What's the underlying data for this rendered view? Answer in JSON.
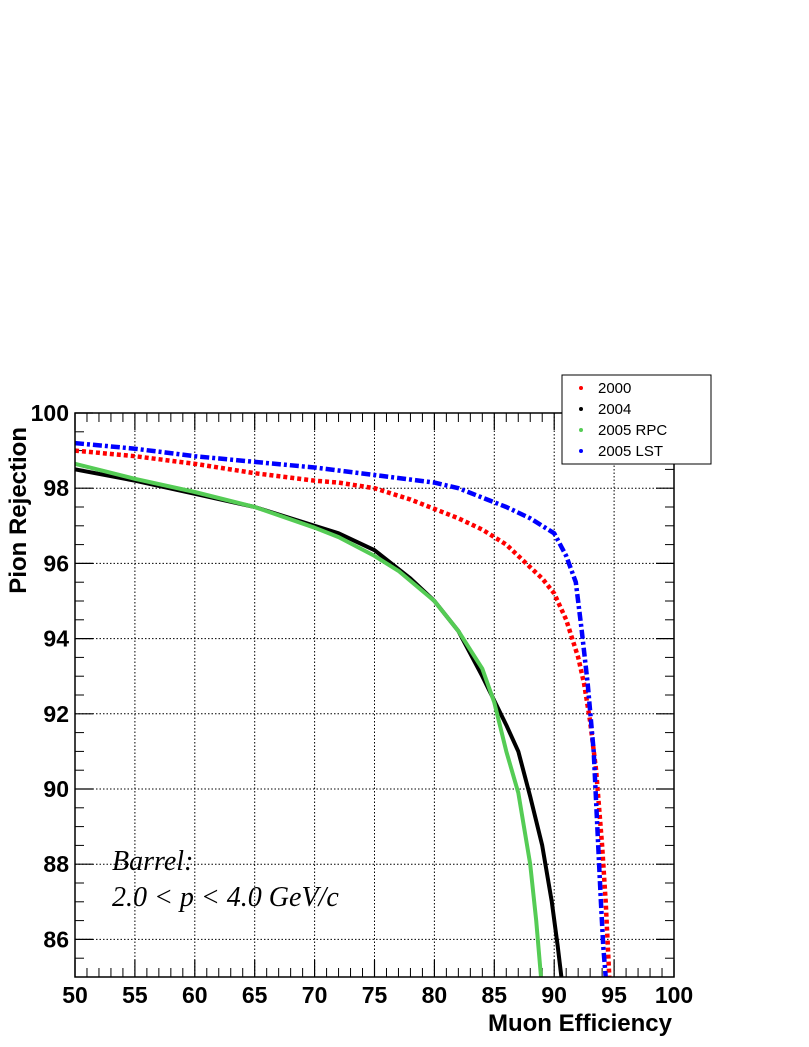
{
  "chart_data": {
    "type": "line",
    "title": "",
    "xlabel": "Muon Efficiency",
    "ylabel": "Pion Rejection",
    "xlim": [
      50,
      100
    ],
    "ylim": [
      85,
      100
    ],
    "x_ticks": [
      50,
      55,
      60,
      65,
      70,
      75,
      80,
      85,
      90,
      95,
      100
    ],
    "y_ticks": [
      86,
      88,
      90,
      92,
      94,
      96,
      98,
      100
    ],
    "grid": true,
    "legend_position": "top-right",
    "annotation": [
      "Barrel:",
      "2.0 < p < 4.0 GeV/c"
    ],
    "series": [
      {
        "name": "2000",
        "color": "#ff0000",
        "style": "dotted",
        "points": [
          [
            50,
            99.0
          ],
          [
            55,
            98.85
          ],
          [
            60,
            98.65
          ],
          [
            65,
            98.4
          ],
          [
            70,
            98.2
          ],
          [
            72,
            98.15
          ],
          [
            75,
            98.0
          ],
          [
            78,
            97.7
          ],
          [
            80,
            97.45
          ],
          [
            82,
            97.2
          ],
          [
            84,
            96.9
          ],
          [
            86,
            96.5
          ],
          [
            88,
            95.9
          ],
          [
            89,
            95.6
          ],
          [
            90,
            95.2
          ],
          [
            91,
            94.5
          ],
          [
            92,
            93.5
          ],
          [
            92.5,
            92.8
          ],
          [
            93,
            91.8
          ],
          [
            93.5,
            90.5
          ],
          [
            94,
            88.5
          ],
          [
            94.3,
            87.0
          ],
          [
            94.6,
            85
          ]
        ]
      },
      {
        "name": "2004",
        "color": "#000000",
        "style": "solid",
        "points": [
          [
            50,
            98.5
          ],
          [
            55,
            98.2
          ],
          [
            60,
            97.85
          ],
          [
            65,
            97.5
          ],
          [
            70,
            97.0
          ],
          [
            72,
            96.8
          ],
          [
            75,
            96.35
          ],
          [
            78,
            95.6
          ],
          [
            80,
            95.0
          ],
          [
            82,
            94.2
          ],
          [
            84,
            93.0
          ],
          [
            86,
            91.7
          ],
          [
            87,
            91.0
          ],
          [
            88,
            89.8
          ],
          [
            89,
            88.5
          ],
          [
            89.8,
            87.0
          ],
          [
            90.3,
            85.8
          ],
          [
            90.6,
            85
          ]
        ]
      },
      {
        "name": "2005 RPC",
        "color": "#55cc55",
        "style": "solid",
        "points": [
          [
            50,
            98.65
          ],
          [
            55,
            98.25
          ],
          [
            60,
            97.9
          ],
          [
            65,
            97.5
          ],
          [
            70,
            96.95
          ],
          [
            72,
            96.7
          ],
          [
            75,
            96.2
          ],
          [
            77,
            95.8
          ],
          [
            80,
            95.0
          ],
          [
            82,
            94.2
          ],
          [
            84,
            93.2
          ],
          [
            85,
            92.3
          ],
          [
            86,
            91.0
          ],
          [
            87,
            89.9
          ],
          [
            88,
            88.0
          ],
          [
            88.5,
            86.5
          ],
          [
            88.9,
            85
          ]
        ]
      },
      {
        "name": "2005 LST",
        "color": "#0000ff",
        "style": "dashdot",
        "points": [
          [
            50,
            99.2
          ],
          [
            55,
            99.05
          ],
          [
            60,
            98.85
          ],
          [
            65,
            98.7
          ],
          [
            70,
            98.55
          ],
          [
            75,
            98.35
          ],
          [
            80,
            98.15
          ],
          [
            82,
            98.0
          ],
          [
            84,
            97.75
          ],
          [
            86,
            97.5
          ],
          [
            88,
            97.2
          ],
          [
            90,
            96.8
          ],
          [
            91,
            96.2
          ],
          [
            91.8,
            95.5
          ],
          [
            92.3,
            94.2
          ],
          [
            92.8,
            92.8
          ],
          [
            93.3,
            91.0
          ],
          [
            93.6,
            89.0
          ],
          [
            93.9,
            87.0
          ],
          [
            94.1,
            85.8
          ],
          [
            94.3,
            85
          ]
        ]
      }
    ]
  }
}
